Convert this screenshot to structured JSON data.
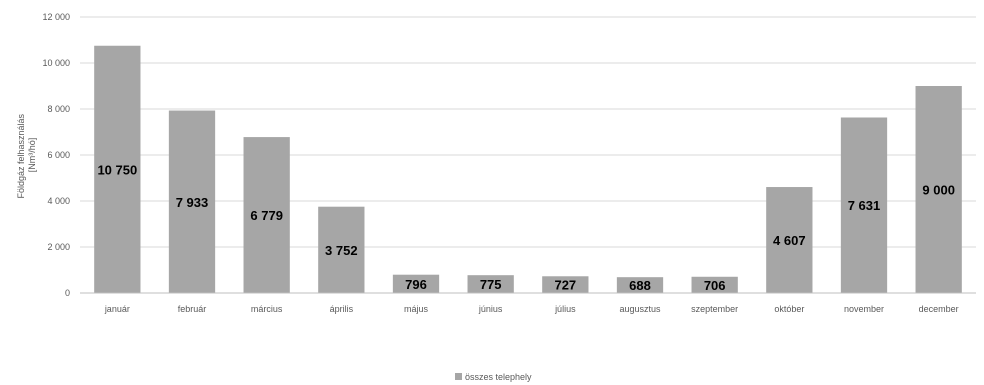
{
  "chart_data": {
    "type": "bar",
    "categories": [
      "január",
      "február",
      "március",
      "április",
      "május",
      "június",
      "július",
      "augusztus",
      "szeptember",
      "október",
      "november",
      "december"
    ],
    "series": [
      {
        "name": "összes telephely",
        "values": [
          10750,
          7933,
          6779,
          3752,
          796,
          775,
          727,
          688,
          706,
          4607,
          7631,
          9000
        ],
        "labels": [
          "10 750",
          "7 933",
          "6 779",
          "3 752",
          "796",
          "775",
          "727",
          "688",
          "706",
          "4 607",
          "7 631",
          "9 000"
        ],
        "color": "#a6a6a6"
      }
    ],
    "ylabel_line1": "Földgáz felhasználás",
    "ylabel_line2": "[Nm³/hó]",
    "ylim": [
      0,
      12000
    ],
    "yticks": [
      0,
      2000,
      4000,
      6000,
      8000,
      10000,
      12000
    ],
    "ytick_labels": [
      "0",
      "2 000",
      "4 000",
      "6 000",
      "8 000",
      "10 000",
      "12 000"
    ],
    "grid": true,
    "legend_position": "bottom-center",
    "gridline_color": "#d9d9d9",
    "axis_color": "#bfbfbf"
  }
}
